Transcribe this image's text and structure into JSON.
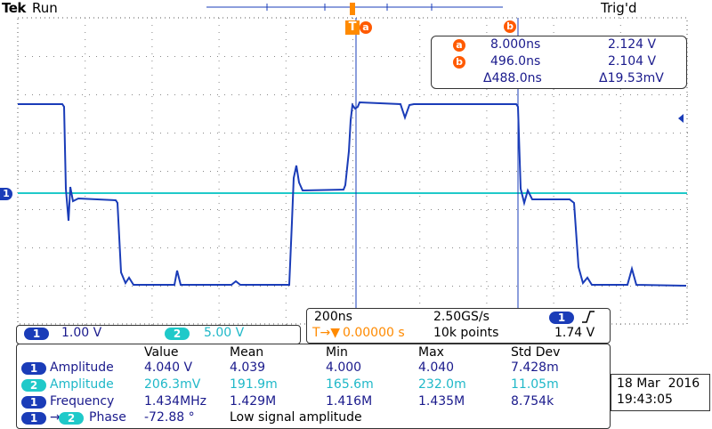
{
  "header": {
    "brand": "Tek",
    "run_state": "Run",
    "trigger_state": "Trig'd"
  },
  "cursors": {
    "a_label": "a",
    "b_label": "b",
    "a_time": "8.000ns",
    "a_volt": "2.124 V",
    "b_time": "496.0ns",
    "b_volt": "2.104 V",
    "delta_time": "Δ488.0ns",
    "delta_volt": "Δ19.53mV"
  },
  "trigger_marker": {
    "label": "T",
    "cursor_label": "a"
  },
  "channel_marker": "1",
  "timebase": {
    "time_div": "200ns",
    "sample_rate": "2.50GS/s",
    "delay_prefix": "T→▼",
    "delay": "0.00000 s",
    "record_length": "10k points",
    "trigger_channel": "1",
    "trigger_level": "1.74 V",
    "trigger_slope_icon": "rising-edge-icon"
  },
  "channels": [
    {
      "id": "1",
      "scale": "1.00 V",
      "color": "#1a3cb8"
    },
    {
      "id": "2",
      "scale": "5.00 V",
      "color": "#1fc9c9"
    }
  ],
  "measurements": {
    "headers": [
      "Value",
      "Mean",
      "Min",
      "Max",
      "Std Dev"
    ],
    "rows": [
      {
        "channel": "1",
        "name": "Amplitude",
        "value": "4.040 V",
        "mean": "4.039",
        "min": "4.000",
        "max": "4.040",
        "std": "7.428m"
      },
      {
        "channel": "2",
        "name": "Amplitude",
        "value": "206.3mV",
        "mean": "191.9m",
        "min": "165.6m",
        "max": "232.0m",
        "std": "11.05m"
      },
      {
        "channel": "1",
        "name": "Frequency",
        "value": "1.434MHz",
        "mean": "1.429M",
        "min": "1.416M",
        "max": "1.435M",
        "std": "8.754k"
      },
      {
        "channel": "1",
        "channel2": "2",
        "arrow": "→",
        "name": "Phase",
        "value": "-72.88 °",
        "note": "Low signal amplitude"
      }
    ]
  },
  "datetime": {
    "date": "18 Mar  2016",
    "time": "19:43:05"
  }
}
